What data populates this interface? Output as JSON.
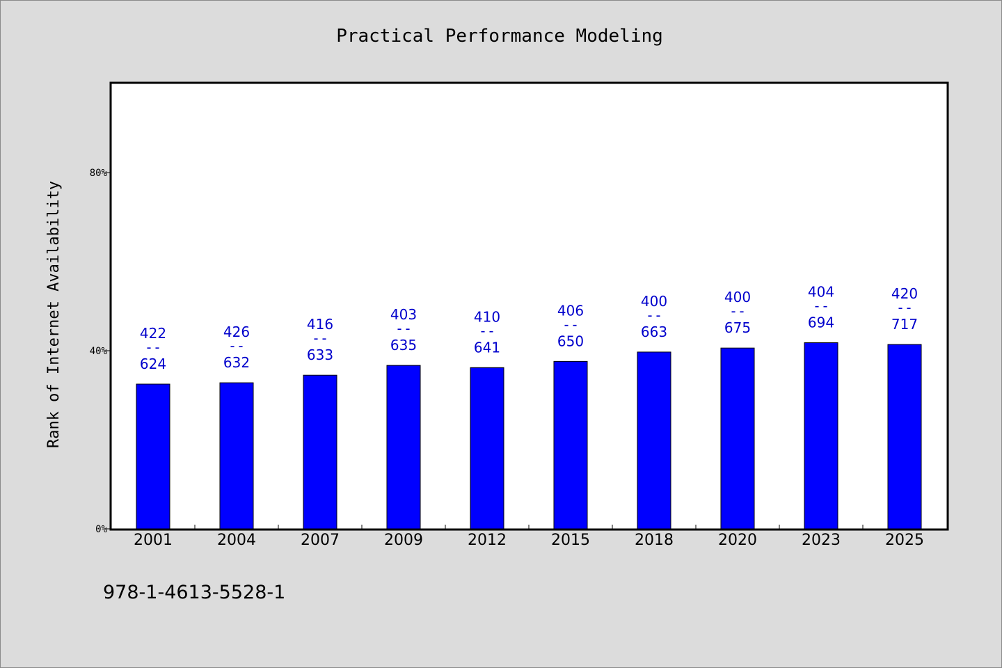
{
  "chart_data": {
    "type": "bar",
    "title": "Practical Performance Modeling",
    "xlabel": "",
    "ylabel": "Rank of Internet Availability",
    "categories": [
      "2001",
      "2004",
      "2007",
      "2009",
      "2012",
      "2015",
      "2018",
      "2020",
      "2023",
      "2025"
    ],
    "values": [
      32.5,
      32.8,
      34.5,
      36.7,
      36.2,
      37.6,
      39.7,
      40.6,
      41.8,
      41.4
    ],
    "labels_top": [
      "422",
      "426",
      "416",
      "403",
      "410",
      "406",
      "400",
      "400",
      "404",
      "420"
    ],
    "labels_separator": "--",
    "labels_bottom": [
      "624",
      "632",
      "633",
      "635",
      "641",
      "650",
      "663",
      "675",
      "694",
      "717"
    ],
    "ylim": [
      0,
      100
    ],
    "yticks": [
      0,
      40,
      80
    ],
    "ytick_labels": [
      "0%",
      "40%",
      "80%"
    ],
    "grid": false,
    "colors": {
      "bar": "#0000ff",
      "label": "#0000cc",
      "background": "#dcdcdc",
      "plot": "#ffffff"
    }
  },
  "footer": {
    "code": "978-1-4613-5528-1"
  }
}
